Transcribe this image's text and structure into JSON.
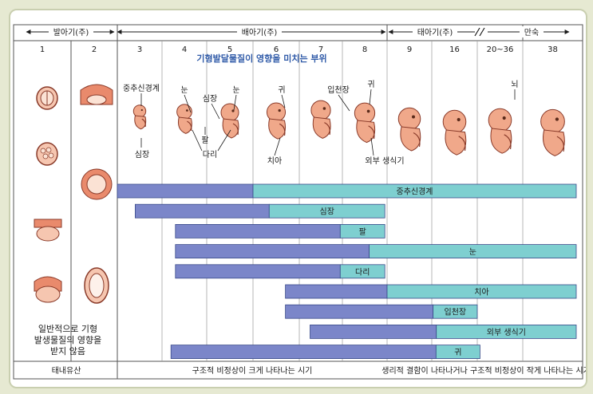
{
  "periods": {
    "pre": "발아기(주)",
    "embryo": "배아기(주)",
    "fetal": "태아기(주)",
    "term": "만숙"
  },
  "weeks": [
    "1",
    "2",
    "3",
    "4",
    "5",
    "6",
    "7",
    "8",
    "9",
    "16",
    "20~36",
    "38"
  ],
  "title": "기형발달물질이 영향을 미치는 부위",
  "labels": {
    "cns": "중추신경계",
    "eye": "눈",
    "heart": "심장",
    "eye2": "눈",
    "ear": "귀",
    "palate": "입천장",
    "ear2": "귀",
    "brain": "뇌",
    "heart_b": "심장",
    "arm": "팔",
    "leg": "다리",
    "teeth": "치아",
    "genitals": "외부 생식기"
  },
  "note": [
    "일반적으로 기형",
    "발생물질의 영향을",
    "받지 않음"
  ],
  "bottom": {
    "a": "태내유산",
    "b": "구조적 비정상이 크게 나타나는 시기",
    "c": "생리적 결함이 나타나거나 구조적 비정상이 작게 나타나는 시기"
  },
  "colors": {
    "major": "#7b86c9",
    "minor": "#7ecfd0",
    "bar_border": "#3a4a8a",
    "embryo": "#f0a88a",
    "title": "#2f5aa8"
  },
  "bars": [
    {
      "name": "중추신경계",
      "start": 3,
      "minor_start": 6,
      "end": 38
    },
    {
      "name": "심장",
      "start": 3.4,
      "minor_start": 6.35,
      "end": 8.95
    },
    {
      "name": "팔",
      "start": 4.3,
      "minor_start": 7.95,
      "end": 8.95
    },
    {
      "name": "눈",
      "start": 4.3,
      "minor_start": 8.6,
      "end": 38
    },
    {
      "name": "다리",
      "start": 4.3,
      "minor_start": 7.95,
      "end": 8.95
    },
    {
      "name": "치아",
      "start": 6.7,
      "minor_start": 9,
      "end": 38
    },
    {
      "name": "입천장",
      "start": 6.7,
      "minor_start": 9.2,
      "end": 16
    },
    {
      "name": "외부 생식기",
      "start": 7.25,
      "minor_start": 9.7,
      "end": 38
    },
    {
      "name": "귀",
      "start": 4.2,
      "minor_start": 9.65,
      "end": 17.2
    }
  ]
}
